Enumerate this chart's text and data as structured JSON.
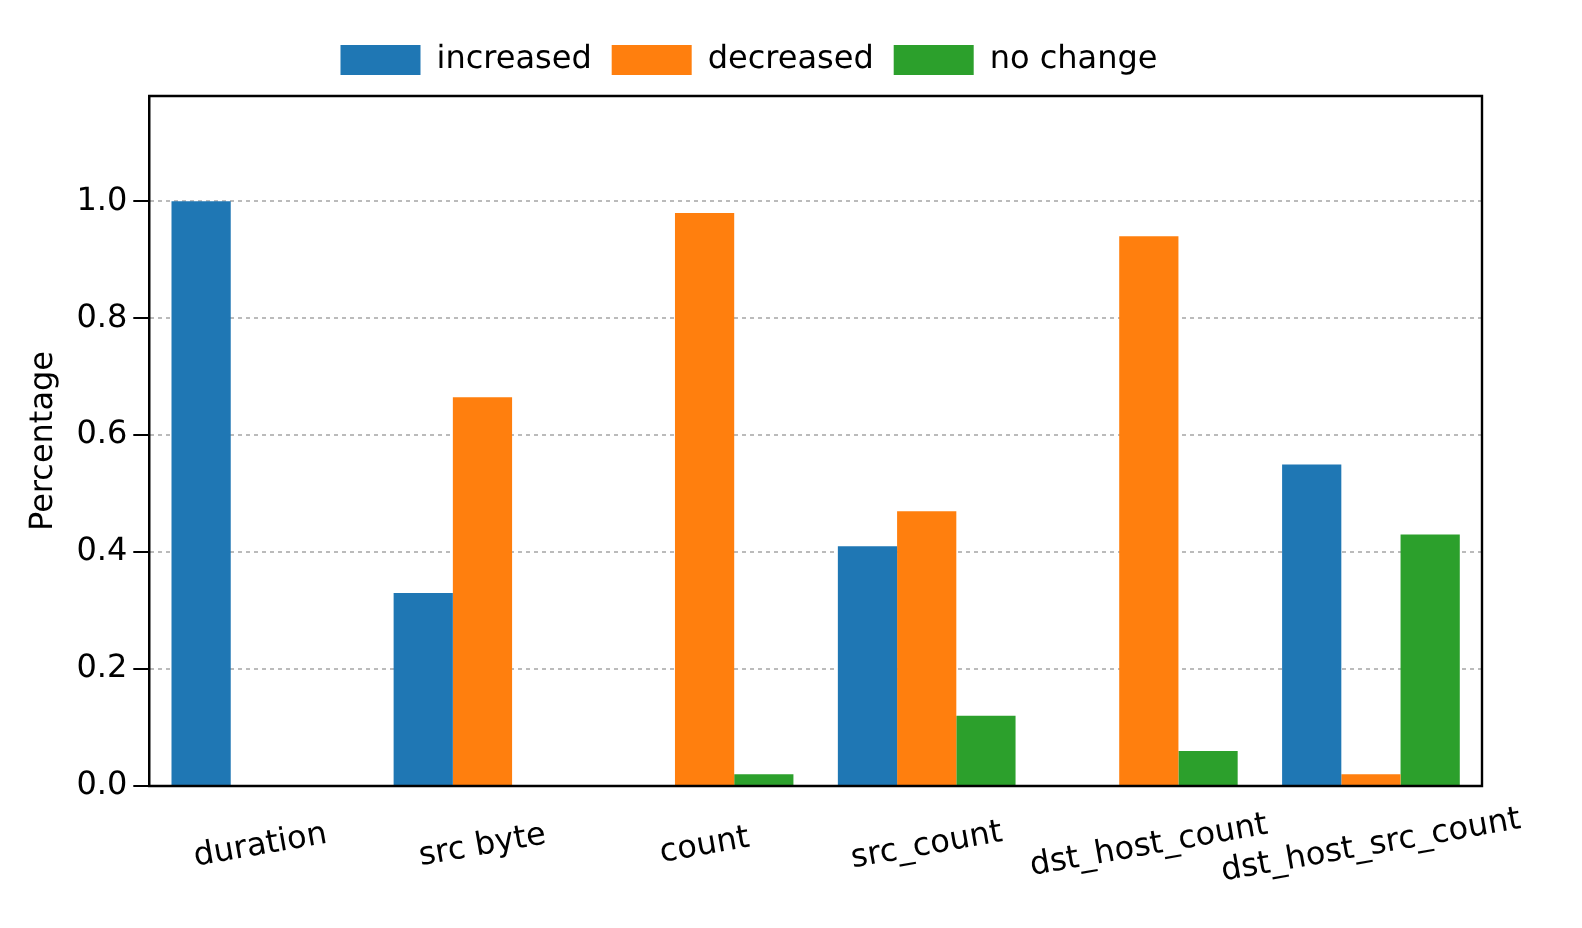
{
  "chart_data": {
    "type": "bar",
    "ylabel": "Percentage",
    "categories": [
      "duration",
      "src byte",
      "count",
      "src_count",
      "dst_host_count",
      "dst_host_src_count"
    ],
    "series": [
      {
        "name": "increased",
        "color": "#1f77b4",
        "values": [
          1.0,
          0.33,
          null,
          0.41,
          null,
          0.55
        ]
      },
      {
        "name": "decreased",
        "color": "#ff7f0e",
        "values": [
          null,
          0.665,
          0.98,
          0.47,
          0.94,
          0.02
        ]
      },
      {
        "name": "no change",
        "color": "#2ca02c",
        "values": [
          null,
          null,
          0.02,
          0.12,
          0.06,
          0.43
        ]
      }
    ],
    "ylim": [
      0,
      1.18
    ],
    "yticks": [
      {
        "value": 0,
        "label": "0.0"
      },
      0.2,
      0.4,
      0.6,
      0.8,
      {
        "value": 1,
        "label": "1.0"
      }
    ],
    "grid": "y",
    "legend": "top"
  }
}
